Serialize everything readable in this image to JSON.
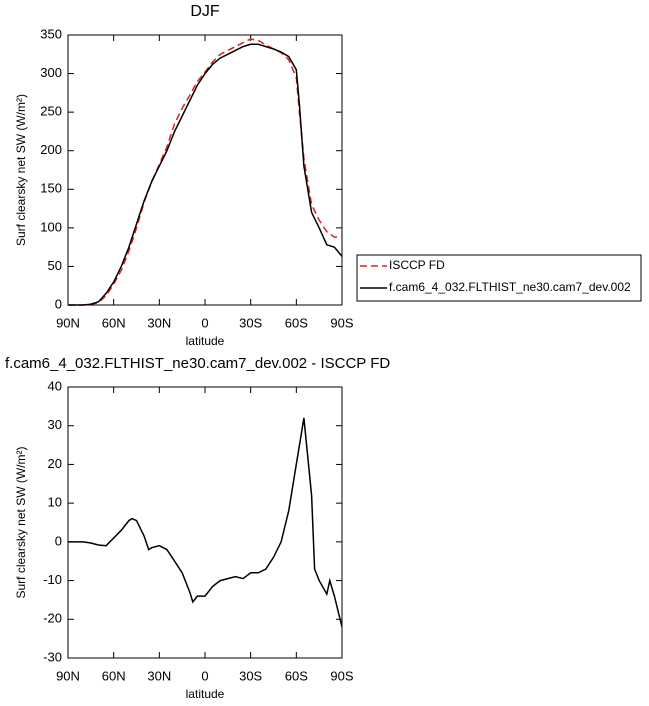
{
  "chart_data": [
    {
      "type": "line",
      "title": "DJF",
      "x_label": "latitude",
      "y_label": "Surf clearsky net SW (W/m²)",
      "x": [
        90,
        85,
        80,
        75,
        70,
        65,
        60,
        55,
        50,
        45,
        40,
        35,
        30,
        25,
        20,
        15,
        10,
        5,
        0,
        -5,
        -10,
        -15,
        -20,
        -25,
        -30,
        -35,
        -40,
        -45,
        -50,
        -55,
        -60,
        -62,
        -65,
        -70,
        -75,
        -80,
        -85,
        -90
      ],
      "series": [
        {
          "name": "ISCCP FD",
          "color": "#e0201b",
          "dash": true,
          "values": [
            0,
            0,
            0,
            1,
            3,
            12,
            27,
            45,
            70,
            100,
            133,
            160,
            182,
            205,
            235,
            255,
            272,
            290,
            302,
            315,
            325,
            330,
            335,
            340,
            345,
            343,
            337,
            332,
            327,
            318,
            295,
            250,
            190,
            130,
            110,
            95,
            88,
            88
          ]
        },
        {
          "name": "f.cam6_4_032.FLTHIST_ne30.cam7_dev.002",
          "color": "#000000",
          "dash": false,
          "values": [
            0,
            0,
            0,
            1,
            4,
            15,
            30,
            50,
            75,
            105,
            135,
            160,
            180,
            200,
            225,
            245,
            265,
            285,
            300,
            312,
            320,
            325,
            330,
            335,
            338,
            338,
            335,
            332,
            328,
            322,
            305,
            260,
            180,
            120,
            100,
            78,
            75,
            63
          ]
        }
      ],
      "xlim": [
        90,
        -90
      ],
      "xticks": [
        {
          "value": 90,
          "label": "90N"
        },
        {
          "value": 60,
          "label": "60N"
        },
        {
          "value": 30,
          "label": "30N"
        },
        0,
        {
          "value": -30,
          "label": "30S"
        },
        {
          "value": -60,
          "label": "60S"
        },
        {
          "value": -90,
          "label": "90S"
        }
      ],
      "ylim": [
        0,
        350
      ],
      "yticks": [
        0,
        50,
        100,
        150,
        200,
        250,
        300,
        350
      ]
    },
    {
      "type": "line",
      "title": "f.cam6_4_032.FLTHIST_ne30.cam7_dev.002 - ISCCP FD",
      "x_label": "latitude",
      "y_label": "Surf clearsky net SW (W/m²)",
      "x": [
        90,
        85,
        80,
        75,
        70,
        65,
        60,
        55,
        50,
        48,
        45,
        40,
        37,
        35,
        30,
        25,
        20,
        15,
        10,
        8,
        5,
        0,
        -5,
        -10,
        -15,
        -20,
        -25,
        -30,
        -35,
        -40,
        -45,
        -50,
        -55,
        -60,
        -65,
        -70,
        -72,
        -75,
        -80,
        -82,
        -85,
        -90
      ],
      "values": [
        0,
        0,
        0,
        -0.3,
        -0.8,
        -1,
        1,
        3,
        5.5,
        6,
        5.5,
        1.5,
        -2,
        -1.5,
        -1,
        -2,
        -5,
        -8,
        -13,
        -15.5,
        -14,
        -14,
        -11.5,
        -10,
        -9.5,
        -9,
        -9.5,
        -8,
        -8,
        -7,
        -4,
        0,
        8,
        20,
        32,
        12,
        -7,
        -10,
        -13.5,
        -10,
        -14,
        -22
      ],
      "color": "#000000",
      "xlim": [
        90,
        -90
      ],
      "xticks": [
        {
          "value": 90,
          "label": "90N"
        },
        {
          "value": 60,
          "label": "60N"
        },
        {
          "value": 30,
          "label": "30N"
        },
        0,
        {
          "value": -30,
          "label": "30S"
        },
        {
          "value": -60,
          "label": "60S"
        },
        {
          "value": -90,
          "label": "90S"
        }
      ],
      "ylim": [
        -30,
        40
      ],
      "yticks": [
        -30,
        -20,
        -10,
        0,
        10,
        20,
        30,
        40
      ]
    }
  ]
}
